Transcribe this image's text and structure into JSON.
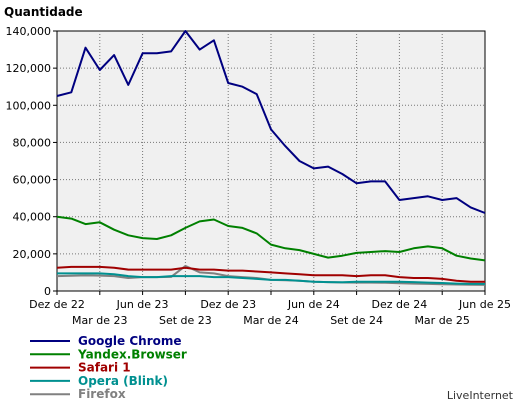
{
  "chart_data": {
    "type": "line",
    "title": "Quantidade",
    "brand": "LiveInternet",
    "ylim": [
      0,
      140000
    ],
    "y_ticks": [
      "0",
      "20,000",
      "40,000",
      "60,000",
      "80,000",
      "100,000",
      "120,000",
      "140,000"
    ],
    "y_tick_values": [
      0,
      20000,
      40000,
      60000,
      80000,
      100000,
      120000,
      140000
    ],
    "x_start": "Dez de 22",
    "x_end": "Jun de 25",
    "x_ticks_upper": [
      "Dez de 22",
      "Jun de 23",
      "Dez de 23",
      "Jun de 24",
      "Dez de 24",
      "Jun de 25"
    ],
    "x_ticks_lower": [
      "Mar de 23",
      "Set de 23",
      "Mar de 24",
      "Set de 24",
      "Mar de 25"
    ],
    "grid": true,
    "legend_position": "bottom-left",
    "series": [
      {
        "name": "Google Chrome",
        "color": "#000080",
        "values": [
          105000,
          107000,
          131000,
          119000,
          127000,
          111000,
          128000,
          128000,
          129000,
          140000,
          130000,
          135000,
          112000,
          110000,
          106000,
          87000,
          78000,
          70000,
          66000,
          67000,
          63000,
          58000,
          59000,
          59000,
          49000,
          50000,
          51000,
          49000,
          50000,
          45000,
          42000
        ]
      },
      {
        "name": "Yandex.Browser",
        "color": "#008000",
        "values": [
          40000,
          39000,
          36000,
          37000,
          33000,
          30000,
          28500,
          28000,
          30000,
          34000,
          37500,
          38500,
          35000,
          34000,
          31000,
          25000,
          23000,
          22000,
          20000,
          18000,
          19000,
          20500,
          21000,
          21500,
          21000,
          23000,
          24000,
          23000,
          19000,
          17500,
          16500
        ]
      },
      {
        "name": "Safari 1",
        "color": "#a00000",
        "values": [
          12500,
          13000,
          13000,
          13000,
          12500,
          11500,
          11500,
          11500,
          11500,
          12500,
          11500,
          11500,
          11000,
          11000,
          10500,
          10000,
          9500,
          9000,
          8500,
          8500,
          8500,
          8000,
          8500,
          8500,
          7500,
          7000,
          7000,
          6500,
          5500,
          5000,
          5000
        ]
      },
      {
        "name": "Opera (Blink)",
        "color": "#009090",
        "values": [
          9500,
          9500,
          9500,
          9500,
          9000,
          8000,
          7500,
          7500,
          8000,
          8000,
          8000,
          7500,
          7500,
          7000,
          6500,
          6000,
          6000,
          5500,
          5000,
          4800,
          4700,
          5000,
          5000,
          5000,
          5000,
          4800,
          4500,
          4300,
          4000,
          3800,
          3800
        ]
      },
      {
        "name": "Firefox",
        "color": "#808080",
        "values": [
          8000,
          8200,
          8400,
          8300,
          8000,
          7000,
          7500,
          7500,
          7600,
          13500,
          10000,
          9500,
          8000,
          7500,
          7000,
          6000,
          5800,
          5500,
          5000,
          4800,
          4600,
          4500,
          4500,
          4400,
          4200,
          4000,
          3800,
          3600,
          3500,
          3400,
          3300
        ]
      }
    ]
  }
}
